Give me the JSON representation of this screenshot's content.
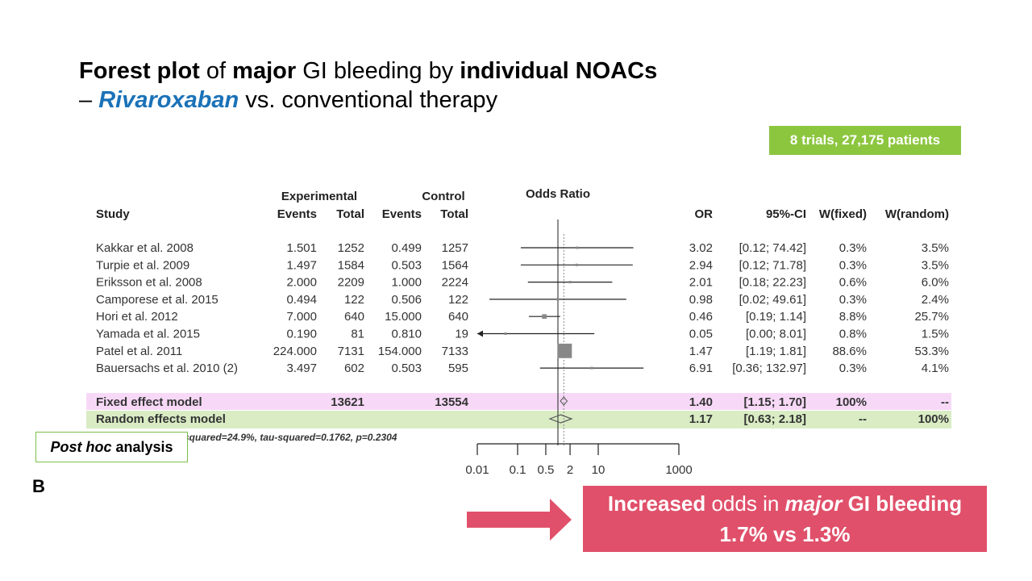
{
  "title": {
    "part1_bold": "Forest plot",
    "part1_of": " of ",
    "part1_major": "major",
    "part1_mid": " GI bleeding by ",
    "part1_bold2": "individual NOACs",
    "part2_dash": "– ",
    "part2_drug": "Rivaroxaban",
    "part2_rest": " vs. conventional therapy"
  },
  "trials_badge": "8 trials, 27,175 patients",
  "posthoc": {
    "italic": "Post hoc",
    "rest": "analysis"
  },
  "panel_label": "B",
  "callout": {
    "line1_bold": "Increased",
    "line1_mid": " odds in ",
    "line1_italic": "major",
    "line1_end": " GI bleeding",
    "line2": "1.7% vs 1.3%"
  },
  "colors": {
    "accent": "#1a72b8",
    "badge": "#8cc63f",
    "fixed_band": "#f7d9f7",
    "random_band": "#d9ecc4",
    "callout": "#e0506a"
  },
  "chart_data": {
    "type": "forest",
    "headers": {
      "experimental": "Experimental",
      "control": "Control",
      "odds_ratio": "Odds Ratio",
      "study": "Study",
      "events": "Events",
      "total": "Total",
      "or": "OR",
      "ci": "95%-CI",
      "wfixed": "W(fixed)",
      "wrandom": "W(random)"
    },
    "studies": [
      {
        "study": "Kakkar et al. 2008",
        "e_events": "1.501",
        "e_total": "1252",
        "c_events": "0.499",
        "c_total": "1257",
        "or": 3.02,
        "lo": 0.12,
        "hi": 74.42,
        "or_text": "3.02",
        "ci_text": "[0.12; 74.42]",
        "wfixed": "0.3%",
        "wrandom": "3.5%"
      },
      {
        "study": "Turpie et al. 2009",
        "e_events": "1.497",
        "e_total": "1584",
        "c_events": "0.503",
        "c_total": "1564",
        "or": 2.94,
        "lo": 0.12,
        "hi": 71.78,
        "or_text": "2.94",
        "ci_text": "[0.12; 71.78]",
        "wfixed": "0.3%",
        "wrandom": "3.5%"
      },
      {
        "study": "Eriksson et al. 2008",
        "e_events": "2.000",
        "e_total": "2209",
        "c_events": "1.000",
        "c_total": "2224",
        "or": 2.01,
        "lo": 0.18,
        "hi": 22.23,
        "or_text": "2.01",
        "ci_text": "[0.18; 22.23]",
        "wfixed": "0.6%",
        "wrandom": "6.0%"
      },
      {
        "study": "Camporese et al. 2015",
        "e_events": "0.494",
        "e_total": "122",
        "c_events": "0.506",
        "c_total": "122",
        "or": 0.98,
        "lo": 0.02,
        "hi": 49.61,
        "or_text": "0.98",
        "ci_text": "[0.02; 49.61]",
        "wfixed": "0.3%",
        "wrandom": "2.4%"
      },
      {
        "study": "Hori et al. 2012",
        "e_events": "7.000",
        "e_total": "640",
        "c_events": "15.000",
        "c_total": "640",
        "or": 0.46,
        "lo": 0.19,
        "hi": 1.14,
        "or_text": "0.46",
        "ci_text": "[0.19;  1.14]",
        "wfixed": "8.8%",
        "wrandom": "25.7%"
      },
      {
        "study": "Yamada et al. 2015",
        "e_events": "0.190",
        "e_total": "81",
        "c_events": "0.810",
        "c_total": "19",
        "or": 0.05,
        "lo": 0.0,
        "hi": 8.01,
        "or_text": "0.05",
        "ci_text": "[0.00;  8.01]",
        "wfixed": "0.8%",
        "wrandom": "1.5%"
      },
      {
        "study": "Patel et al. 2011",
        "e_events": "224.000",
        "e_total": "7131",
        "c_events": "154.000",
        "c_total": "7133",
        "or": 1.47,
        "lo": 1.19,
        "hi": 1.81,
        "or_text": "1.47",
        "ci_text": "[1.19;  1.81]",
        "wfixed": "88.6%",
        "wrandom": "53.3%"
      },
      {
        "study": "Bauersachs et al. 2010 (2)",
        "e_events": "3.497",
        "e_total": "602",
        "c_events": "0.503",
        "c_total": "595",
        "or": 6.91,
        "lo": 0.36,
        "hi": 132.97,
        "or_text": "6.91",
        "ci_text": "[0.36; 132.97]",
        "wfixed": "0.3%",
        "wrandom": "4.1%"
      }
    ],
    "fixed": {
      "label": "Fixed effect model",
      "e_total": "13621",
      "c_total": "13554",
      "or": 1.4,
      "lo": 1.15,
      "hi": 1.7,
      "or_text": "1.40",
      "ci_text": "[1.15;  1.70]",
      "wfixed": "100%",
      "wrandom": "--"
    },
    "random": {
      "label": "Random effects model",
      "or": 1.17,
      "lo": 0.63,
      "hi": 2.18,
      "or_text": "1.17",
      "ci_text": "[0.63;  2.18]",
      "wfixed": "--",
      "wrandom": "100%"
    },
    "heterogeneity": "squared=24.9%, tau-squared=0.1762, p=0.2304",
    "x_ticks": [
      "0.01",
      "0.1",
      "0.5",
      "2",
      "10",
      "1000"
    ],
    "x_tick_values": [
      0.01,
      0.1,
      0.5,
      2,
      10,
      1000
    ],
    "x_scale": "log",
    "xlim": [
      0.01,
      1000
    ]
  }
}
